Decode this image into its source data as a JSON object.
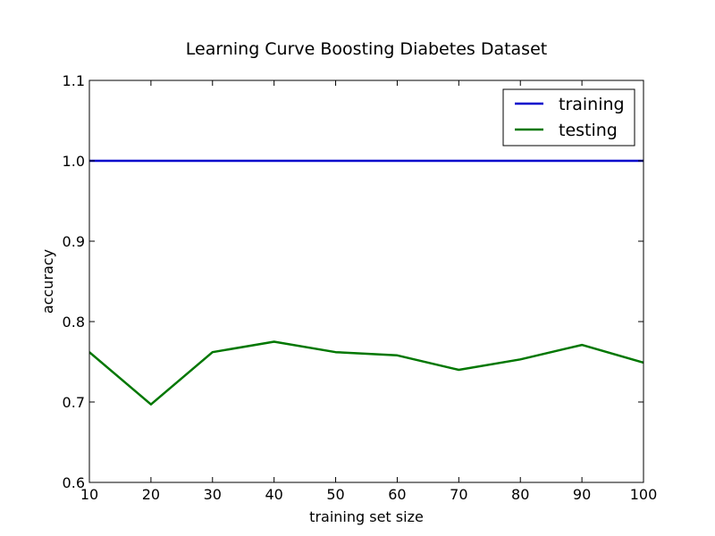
{
  "chart_data": {
    "type": "line",
    "title": "Learning Curve Boosting Diabetes Dataset",
    "xlabel": "training set size",
    "ylabel": "accuracy",
    "xlim": [
      10,
      100
    ],
    "ylim": [
      0.6,
      1.1
    ],
    "xticks": [
      "10",
      "20",
      "30",
      "40",
      "50",
      "60",
      "70",
      "80",
      "90",
      "100"
    ],
    "yticks": [
      "0.6",
      "0.7",
      "0.8",
      "0.9",
      "1.0",
      "1.1"
    ],
    "x": [
      10,
      20,
      30,
      40,
      50,
      60,
      70,
      80,
      90,
      100
    ],
    "series": [
      {
        "name": "training",
        "color": "#0000cc",
        "values": [
          1.0,
          1.0,
          1.0,
          1.0,
          1.0,
          1.0,
          1.0,
          1.0,
          1.0,
          1.0
        ]
      },
      {
        "name": "testing",
        "color": "#007700",
        "values": [
          0.762,
          0.697,
          0.762,
          0.775,
          0.762,
          0.758,
          0.74,
          0.753,
          0.771,
          0.749
        ]
      }
    ],
    "grid": false,
    "legend_position": "top-right"
  }
}
